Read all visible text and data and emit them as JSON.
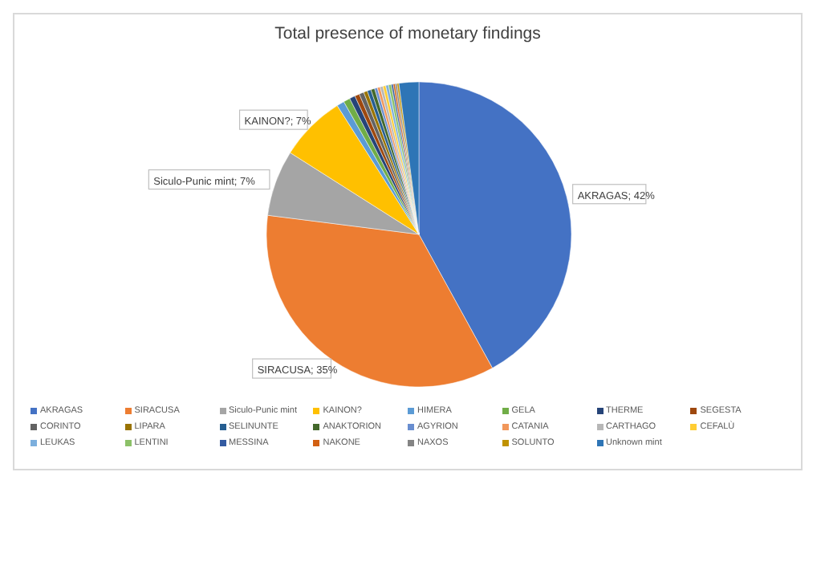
{
  "chart_data": {
    "type": "pie",
    "title": "Total presence of monetary findings",
    "categories": [
      "AKRAGAS",
      "SIRACUSA",
      "Siculo-Punic mint",
      "KAINON?",
      "HIMERA",
      "GELA",
      "THERME",
      "SEGESTA",
      "CORINTO",
      "LIPARA",
      "SELINUNTE",
      "ANAKTORION",
      "AGYRION",
      "CATANIA",
      "CARTHAGO",
      "CEFALÙ",
      "LEUKAS",
      "LENTINI",
      "MESSINA",
      "NAKONE",
      "NAXOS",
      "SOLUNTO",
      "Unknown mint"
    ],
    "values": [
      42,
      35,
      7,
      7,
      0.8,
      0.7,
      0.6,
      0.5,
      0.5,
      0.4,
      0.4,
      0.4,
      0.3,
      0.3,
      0.3,
      0.3,
      0.3,
      0.3,
      0.2,
      0.2,
      0.2,
      0.2,
      2.1
    ],
    "colors": [
      "#4472c4",
      "#ed7d31",
      "#a5a5a5",
      "#ffc000",
      "#5b9bd5",
      "#70ad47",
      "#264478",
      "#9e480e",
      "#636363",
      "#997300",
      "#255e91",
      "#43682b",
      "#698ed0",
      "#f1975a",
      "#b7b7b7",
      "#ffcd33",
      "#7cafdd",
      "#8cc168",
      "#335aa1",
      "#d26012",
      "#848484",
      "#c09200",
      "#2e75b6"
    ],
    "value_labels": [
      "AKRAGAS; 42%",
      "SIRACUSA; 35%",
      "Siculo-Punic mint; 7%",
      "KAINON?; 7%",
      null,
      null,
      null,
      null,
      null,
      null,
      null,
      null,
      null,
      null,
      null,
      null,
      null,
      null,
      null,
      null,
      null,
      null,
      null
    ],
    "legend": "bottom"
  }
}
